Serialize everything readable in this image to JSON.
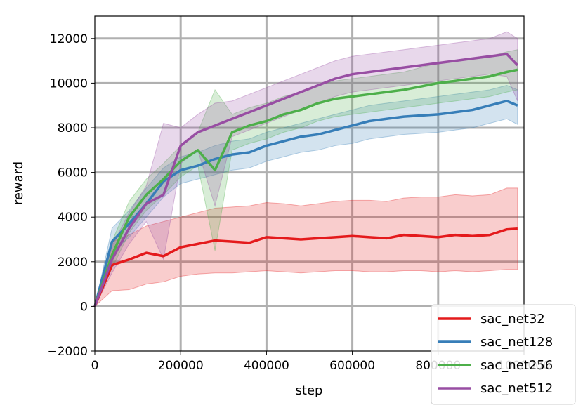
{
  "chart_data": {
    "type": "line",
    "xlabel": "step",
    "ylabel": "reward",
    "xlim": [
      0,
      1000000
    ],
    "ylim": [
      -2000,
      13000
    ],
    "xticks": [
      0,
      200000,
      400000,
      600000,
      800000,
      1000000
    ],
    "xtick_labels": [
      "0",
      "200000",
      "400000",
      "600000",
      "800000",
      "1000000"
    ],
    "yticks": [
      -2000,
      0,
      2000,
      4000,
      6000,
      8000,
      10000,
      12000
    ],
    "ytick_labels": [
      "−2000",
      "0",
      "2000",
      "4000",
      "6000",
      "8000",
      "10000",
      "12000"
    ],
    "grid": true,
    "legend_position": "bottom-right",
    "x": [
      0,
      40000,
      80000,
      120000,
      160000,
      200000,
      240000,
      280000,
      320000,
      360000,
      400000,
      440000,
      480000,
      520000,
      560000,
      600000,
      640000,
      680000,
      720000,
      760000,
      800000,
      840000,
      880000,
      920000,
      960000,
      985000
    ],
    "series": [
      {
        "name": "sac_net32",
        "color": "#e41a1c",
        "values": [
          0,
          1850,
          2100,
          2400,
          2250,
          2650,
          2800,
          2950,
          2900,
          2850,
          3100,
          3050,
          3000,
          3050,
          3100,
          3150,
          3100,
          3050,
          3200,
          3150,
          3100,
          3200,
          3150,
          3200,
          3450,
          3480
        ],
        "lower": [
          0,
          700,
          750,
          1000,
          1100,
          1350,
          1450,
          1500,
          1500,
          1550,
          1600,
          1550,
          1500,
          1550,
          1600,
          1600,
          1550,
          1550,
          1600,
          1600,
          1550,
          1600,
          1550,
          1600,
          1650,
          1650
        ],
        "upper": [
          0,
          2900,
          3200,
          3600,
          3800,
          4000,
          4200,
          4400,
          4450,
          4500,
          4650,
          4600,
          4500,
          4600,
          4700,
          4750,
          4750,
          4700,
          4850,
          4900,
          4900,
          5000,
          4950,
          5000,
          5300,
          5300
        ]
      },
      {
        "name": "sac_net128",
        "color": "#377eb8",
        "values": [
          0,
          2900,
          3700,
          4600,
          5600,
          6100,
          6300,
          6600,
          6800,
          6900,
          7200,
          7400,
          7600,
          7700,
          7900,
          8100,
          8300,
          8400,
          8500,
          8550,
          8600,
          8700,
          8800,
          9000,
          9200,
          9000
        ],
        "lower": [
          0,
          2400,
          3100,
          4000,
          4900,
          5500,
          5700,
          5900,
          6100,
          6200,
          6500,
          6700,
          6900,
          7000,
          7200,
          7300,
          7500,
          7600,
          7700,
          7750,
          7800,
          7900,
          8000,
          8200,
          8400,
          8150
        ],
        "upper": [
          0,
          3500,
          4300,
          5300,
          6200,
          6700,
          6900,
          7200,
          7400,
          7500,
          7800,
          8000,
          8200,
          8400,
          8600,
          8800,
          9000,
          9100,
          9200,
          9300,
          9400,
          9500,
          9600,
          9700,
          9900,
          9700
        ]
      },
      {
        "name": "sac_net256",
        "color": "#4daf4a",
        "values": [
          0,
          2300,
          4000,
          5000,
          5700,
          6500,
          7000,
          6100,
          7800,
          8100,
          8300,
          8600,
          8800,
          9100,
          9300,
          9400,
          9500,
          9600,
          9700,
          9850,
          10000,
          10100,
          10200,
          10300,
          10500,
          10600
        ],
        "lower": [
          0,
          1700,
          3300,
          4300,
          5000,
          5800,
          6300,
          2500,
          7000,
          7300,
          7500,
          7800,
          8000,
          8300,
          8500,
          8600,
          8700,
          8800,
          8900,
          9000,
          9100,
          9200,
          9300,
          9400,
          9600,
          9700
        ],
        "upper": [
          0,
          2900,
          4700,
          5700,
          6400,
          7200,
          7800,
          9700,
          8600,
          8900,
          9100,
          9400,
          9600,
          9900,
          10100,
          10200,
          10300,
          10400,
          10500,
          10700,
          10900,
          11000,
          11100,
          11200,
          11400,
          11500
        ]
      },
      {
        "name": "sac_net512",
        "color": "#984ea3",
        "values": [
          0,
          2100,
          3500,
          4600,
          5000,
          7200,
          7800,
          8100,
          8400,
          8700,
          9000,
          9300,
          9600,
          9900,
          10200,
          10400,
          10500,
          10600,
          10700,
          10800,
          10900,
          11000,
          11100,
          11200,
          11300,
          10800
        ],
        "lower": [
          0,
          1500,
          2800,
          3800,
          2100,
          6400,
          7000,
          4500,
          7600,
          7900,
          8200,
          8500,
          8800,
          9100,
          9400,
          9600,
          9700,
          9800,
          9900,
          10000,
          10100,
          10200,
          10300,
          10400,
          10300,
          9200
        ],
        "upper": [
          0,
          2700,
          4200,
          5400,
          8200,
          8000,
          8600,
          9100,
          9200,
          9500,
          9800,
          10100,
          10400,
          10700,
          11000,
          11200,
          11300,
          11400,
          11500,
          11600,
          11700,
          11800,
          11900,
          12000,
          12300,
          12000
        ]
      }
    ]
  }
}
